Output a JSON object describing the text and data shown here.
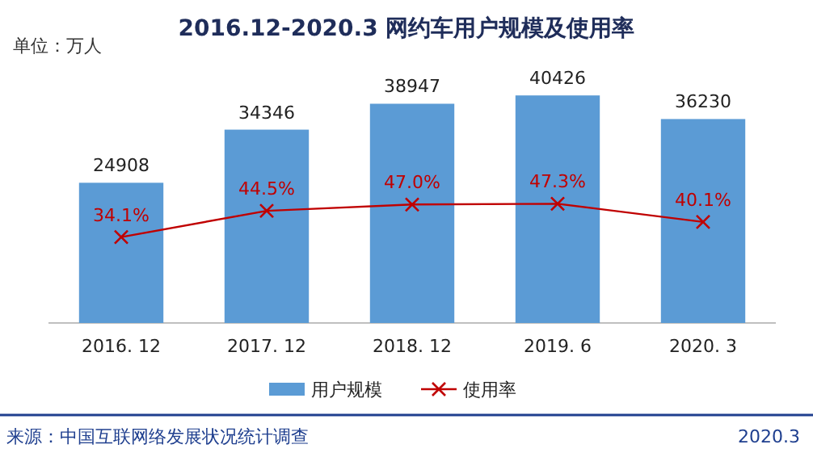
{
  "chart_data": {
    "type": "bar",
    "title": "2016.12-2020.3 网约车用户规模及使用率",
    "ylabel": "单位：万人",
    "categories": [
      "2016. 12",
      "2017. 12",
      "2018. 12",
      "2019. 6",
      "2020. 3"
    ],
    "series": [
      {
        "name": "用户规模",
        "color": "#5b9bd5",
        "values": [
          24908,
          34346,
          38947,
          40426,
          36230
        ],
        "value_labels": [
          "24908",
          "34346",
          "38947",
          "40426",
          "36230"
        ]
      },
      {
        "name": "使用率",
        "type": "line",
        "axis": "y2",
        "color": "#c00000",
        "values": [
          34.1,
          44.5,
          47.0,
          47.3,
          40.1
        ],
        "value_labels": [
          "34.1%",
          "44.5%",
          "47.0%",
          "47.3%",
          "40.1%"
        ]
      }
    ],
    "marker": "cross",
    "legend": "bottom",
    "annotations": [
      "来源：中国互联网络发展状况统计调查",
      "2020.3"
    ]
  }
}
